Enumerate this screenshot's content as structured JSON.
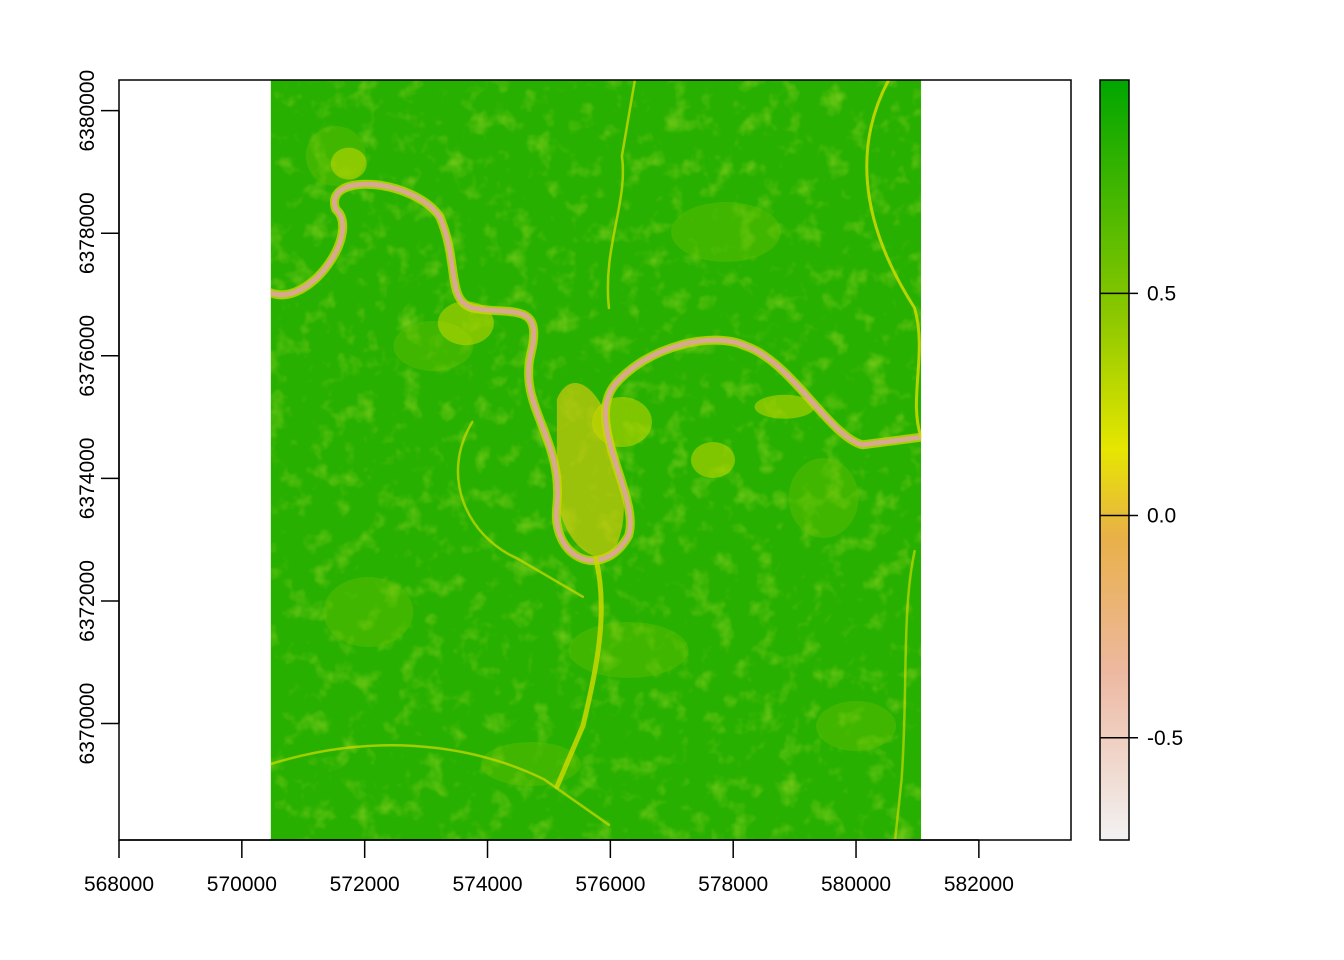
{
  "map": {
    "x_axis": {
      "range": [
        568000,
        583500
      ],
      "ticks": [
        568000,
        570000,
        572000,
        574000,
        576000,
        578000,
        580000,
        582000
      ],
      "tick_labels": [
        "568000",
        "570000",
        "572000",
        "574000",
        "576000",
        "578000",
        "580000",
        "582000"
      ]
    },
    "y_axis": {
      "range": [
        6368100,
        6380500
      ],
      "ticks": [
        6370000,
        6372000,
        6374000,
        6376000,
        6378000,
        6380000
      ],
      "tick_labels": [
        "6370000",
        "6372000",
        "6374000",
        "6376000",
        "6378000",
        "6380000"
      ]
    },
    "raster_extent": {
      "xmin": 570470,
      "xmax": 581060,
      "ymin": 6368100,
      "ymax": 6380500
    },
    "legend": {
      "range": [
        -0.73,
        0.98
      ],
      "ticks": [
        0.5,
        0.0,
        -0.5
      ],
      "tick_labels": [
        "0.5",
        "0.0",
        "-0.5"
      ],
      "color_stops": [
        {
          "value": -0.73,
          "color": "#f2f2f2"
        },
        {
          "value": -0.35,
          "color": "#edb8a0"
        },
        {
          "value": -0.05,
          "color": "#e9b049"
        },
        {
          "value": 0.15,
          "color": "#e6e600"
        },
        {
          "value": 0.45,
          "color": "#8cc800"
        },
        {
          "value": 0.98,
          "color": "#00a600"
        }
      ]
    },
    "colors": {
      "vegetation": "#28b000",
      "vegetation_dark": "#1aa600",
      "vegetation_light": "#6cc400",
      "sparse": "#c8d800",
      "urban": "#d8cc10",
      "water": "#d8a890"
    }
  }
}
